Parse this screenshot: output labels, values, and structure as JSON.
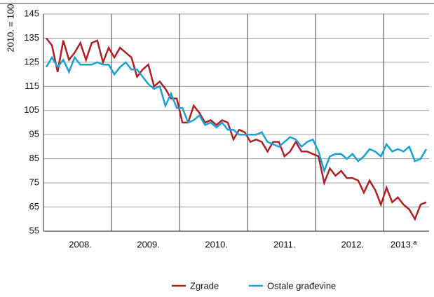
{
  "chart_data": {
    "type": "line",
    "y_label": "2010. = 100",
    "categories": [
      null,
      null,
      null,
      null,
      null,
      null,
      "2008.",
      null,
      null,
      null,
      null,
      null,
      null,
      null,
      null,
      null,
      null,
      null,
      "2009.",
      null,
      null,
      null,
      null,
      null,
      null,
      null,
      null,
      null,
      null,
      null,
      "2010.",
      null,
      null,
      null,
      null,
      null,
      null,
      null,
      null,
      null,
      null,
      null,
      "2011.",
      null,
      null,
      null,
      null,
      null,
      null,
      null,
      null,
      null,
      null,
      null,
      "2012.",
      null,
      null,
      null,
      null,
      null,
      null,
      null,
      null,
      "2013.ª",
      null,
      null,
      null,
      null
    ],
    "series": [
      {
        "name": "Zgrade",
        "color": "#b01f24",
        "values": [
          135,
          132,
          121,
          134,
          126,
          129,
          133,
          126,
          133,
          134,
          125,
          131,
          127,
          131,
          129,
          127,
          119,
          122,
          124,
          115,
          117,
          114,
          110,
          110,
          100,
          100,
          107,
          104,
          100,
          101,
          99,
          101,
          100,
          93,
          97,
          96,
          92,
          93,
          92,
          88,
          92,
          92,
          86,
          88,
          92,
          88,
          88,
          87,
          86,
          75,
          81,
          78,
          80,
          77,
          77,
          76,
          71,
          76,
          72,
          66,
          73,
          67,
          69,
          66,
          64,
          60,
          66,
          67
        ]
      },
      {
        "name": "Ostale građevine",
        "color": "#1aa0d8",
        "values": [
          123,
          127,
          123,
          126,
          121,
          127,
          124,
          124,
          124,
          125,
          124,
          124,
          120,
          123,
          125,
          122,
          122,
          119,
          116,
          114,
          115,
          107,
          112,
          106,
          106,
          100,
          101,
          103,
          99,
          100,
          98,
          100,
          97,
          97,
          95,
          95,
          95,
          95,
          96,
          92,
          91,
          90,
          92,
          94,
          93,
          90,
          92,
          93,
          88,
          80,
          86,
          87,
          87,
          85,
          87,
          84,
          86,
          89,
          88,
          86,
          91,
          88,
          89,
          88,
          90,
          84,
          85,
          89
        ]
      }
    ],
    "ylim": [
      55,
      145
    ],
    "yticks": [
      55,
      65,
      75,
      85,
      95,
      105,
      115,
      125,
      135,
      145
    ],
    "grid": true
  }
}
